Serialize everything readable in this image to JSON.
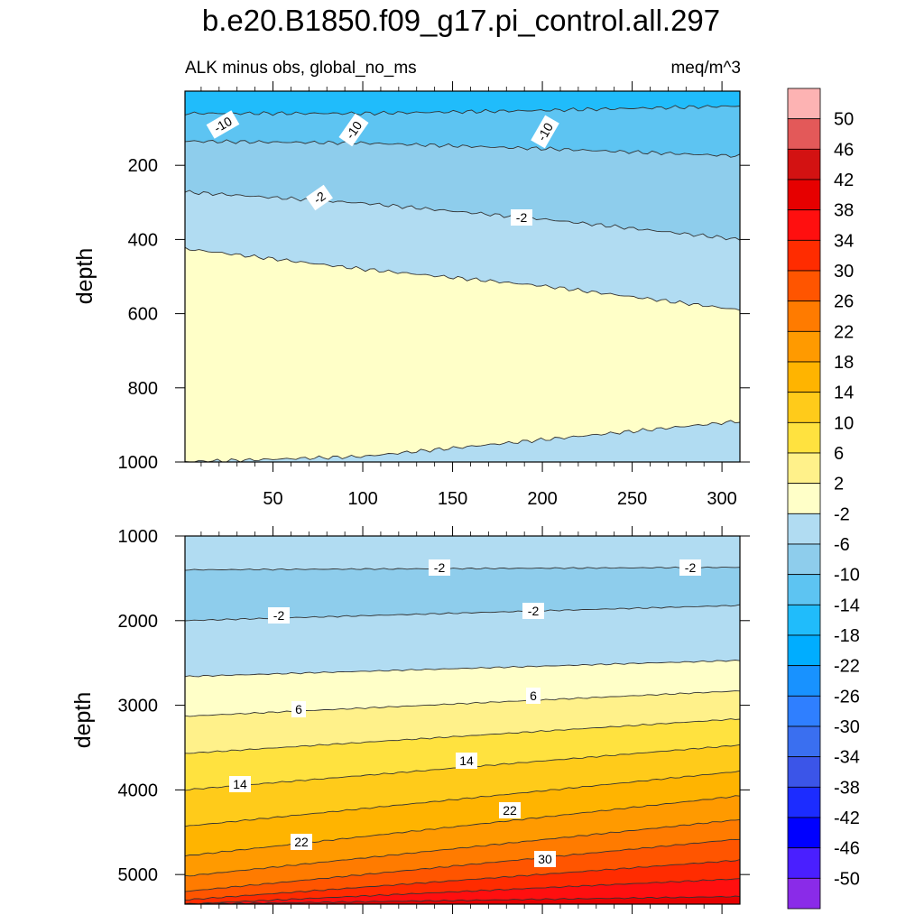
{
  "title": "b.e20.B1850.f09_g17.pi_control.all.297",
  "subtitle_left": "ALK minus obs, global_no_ms",
  "subtitle_right": "meq/m^3",
  "colorbar": {
    "labels": [
      "50",
      "46",
      "42",
      "38",
      "34",
      "30",
      "26",
      "22",
      "18",
      "14",
      "10",
      "6",
      "2",
      "-2",
      "-6",
      "-10",
      "-14",
      "-18",
      "-22",
      "-26",
      "-30",
      "-34",
      "-38",
      "-42",
      "-46",
      "-50"
    ],
    "colors": [
      "#fdb3b3",
      "#e35959",
      "#d31212",
      "#e60000",
      "#ff0f0f",
      "#ff2c00",
      "#ff5500",
      "#ff7b00",
      "#ff9a00",
      "#ffb400",
      "#ffcb1a",
      "#ffe23f",
      "#fff18a",
      "#ffffc8",
      "#b1dcf2",
      "#8ecdec",
      "#5dc4f2",
      "#20bcfb",
      "#00adff",
      "#1892ff",
      "#2f7fff",
      "#3a6ff0",
      "#3b55e8",
      "#1c2cff",
      "#0000ff",
      "#4a1fff",
      "#8a2be8"
    ]
  },
  "chart_data": [
    {
      "type": "contour",
      "panel": "upper",
      "ylabel": "depth",
      "xlim": [
        1,
        310
      ],
      "ylim": [
        0,
        1000
      ],
      "y_inverted": true,
      "xticks": [
        50,
        100,
        150,
        200,
        250,
        300
      ],
      "yticks": [
        200,
        400,
        600,
        800,
        1000
      ],
      "contour_levels": [
        -10,
        -6,
        -2,
        2
      ],
      "contour_labels": [
        "-10",
        "-10",
        "-10",
        "-2",
        "-2"
      ],
      "x": [
        1,
        100,
        200,
        310
      ],
      "boundaries_depth": {
        "-14/-10": [
          60,
          60,
          52,
          40
        ],
        "-10/-6": [
          135,
          140,
          155,
          175
        ],
        "-6/-2": [
          272,
          302,
          345,
          400
        ],
        "-2/2": [
          425,
          480,
          525,
          590
        ],
        "2/-2": [
          1000,
          985,
          940,
          890
        ]
      }
    },
    {
      "type": "contour",
      "panel": "lower",
      "ylabel": "depth",
      "xlim": [
        1,
        310
      ],
      "ylim": [
        1000,
        5350
      ],
      "y_inverted": true,
      "xticks": [
        50,
        100,
        150,
        200,
        250,
        300
      ],
      "yticks": [
        1000,
        2000,
        3000,
        4000,
        5000
      ],
      "contour_levels": [
        -2,
        2,
        6,
        10,
        14,
        18,
        22,
        26,
        30,
        34,
        38,
        42
      ],
      "contour_labels": [
        "-2",
        "-2",
        "-2",
        "-2",
        "6",
        "6",
        "14",
        "14",
        "22",
        "22",
        "30"
      ],
      "x": [
        1,
        310
      ],
      "boundaries_depth": {
        "-2/-6": [
          1400,
          1370
        ],
        "-6/-2": [
          2000,
          1820
        ],
        "-2/2": [
          2660,
          2470
        ],
        "2/6": [
          3130,
          2830
        ],
        "6/10": [
          3570,
          3160
        ],
        "10/14": [
          4000,
          3470
        ],
        "14/18": [
          4430,
          3780
        ],
        "18/22": [
          4780,
          4070
        ],
        "22/26": [
          5020,
          4350
        ],
        "26/30": [
          5200,
          4580
        ],
        "30/34": [
          5300,
          4830
        ],
        "34/38": [
          5350,
          5050
        ],
        "38/42": [
          5350,
          5260
        ]
      }
    }
  ]
}
